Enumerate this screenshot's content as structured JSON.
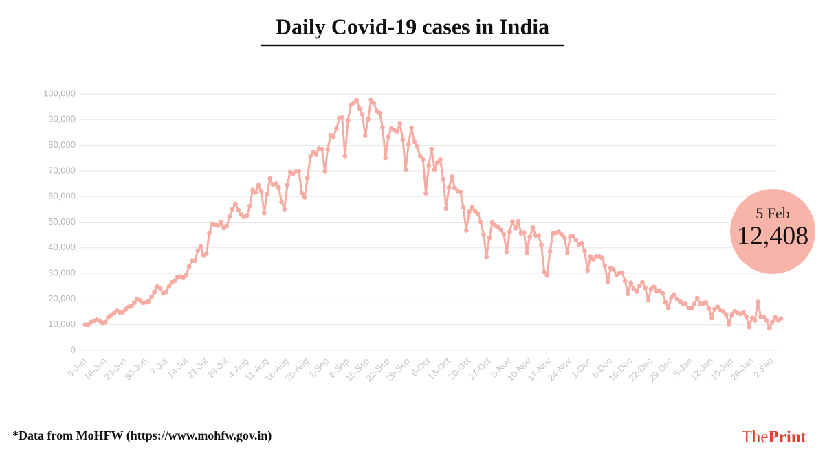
{
  "chart_data": {
    "type": "line",
    "title": "Daily Covid-19 cases in India",
    "source": "*Data from MoHFW (https://www.mohfw.gov.in)",
    "logo": [
      "The",
      "Print"
    ],
    "annotation": "5 Feb",
    "color": "#f6aca2",
    "grid": true,
    "ylim": [
      0,
      100000
    ],
    "yticks": [
      0,
      {
        "value": 10000,
        "label": "10,000"
      },
      {
        "value": 20000,
        "label": "20,000"
      },
      {
        "value": 30000,
        "label": "30,000"
      },
      {
        "value": 40000,
        "label": "40,000"
      },
      {
        "value": 50000,
        "label": "50,000"
      },
      {
        "value": 60000,
        "label": "60,000"
      },
      {
        "value": 70000,
        "label": "70,000"
      },
      {
        "value": 80000,
        "label": "80,000"
      },
      {
        "value": 90000,
        "label": "90,000"
      },
      {
        "value": 100000,
        "label": "100,000"
      }
    ],
    "categories": [
      "9-Jun",
      null,
      null,
      null,
      null,
      null,
      null,
      "16-Jun",
      null,
      null,
      null,
      null,
      null,
      null,
      "23-Jun",
      null,
      null,
      null,
      null,
      null,
      null,
      "30-Jun",
      null,
      null,
      null,
      null,
      null,
      null,
      "7-Jul",
      null,
      null,
      null,
      null,
      null,
      null,
      "14-Jul",
      null,
      null,
      null,
      null,
      null,
      null,
      "21-Jul",
      null,
      null,
      null,
      null,
      null,
      null,
      "28-Jul",
      null,
      null,
      null,
      null,
      null,
      null,
      "4-Aug",
      null,
      null,
      null,
      null,
      null,
      null,
      "11-Aug",
      null,
      null,
      null,
      null,
      null,
      null,
      "18-Aug",
      null,
      null,
      null,
      null,
      null,
      null,
      "25-Aug",
      null,
      null,
      null,
      null,
      null,
      null,
      "1-Sep",
      null,
      null,
      null,
      null,
      null,
      null,
      "8-Sep",
      null,
      null,
      null,
      null,
      null,
      null,
      "15-Sep",
      null,
      null,
      null,
      null,
      null,
      null,
      "22-Sep",
      null,
      null,
      null,
      null,
      null,
      null,
      "29-Sep",
      null,
      null,
      null,
      null,
      null,
      null,
      "6-Oct",
      null,
      null,
      null,
      null,
      null,
      null,
      "13-Oct",
      null,
      null,
      null,
      null,
      null,
      null,
      "20-Oct",
      null,
      null,
      null,
      null,
      null,
      null,
      "27-Oct",
      null,
      null,
      null,
      null,
      null,
      null,
      "3-Nov",
      null,
      null,
      null,
      null,
      null,
      null,
      "10-Nov",
      null,
      null,
      null,
      null,
      null,
      null,
      "17-Nov",
      null,
      null,
      null,
      null,
      null,
      null,
      "24-Nov",
      null,
      null,
      null,
      null,
      null,
      null,
      "1-Dec",
      null,
      null,
      null,
      null,
      null,
      null,
      "8-Dec",
      null,
      null,
      null,
      null,
      null,
      null,
      "15-Dec",
      null,
      null,
      null,
      null,
      null,
      null,
      "22-Dec",
      null,
      null,
      null,
      null,
      null,
      null,
      "29-Dec",
      null,
      null,
      null,
      null,
      null,
      null,
      "5-Jan",
      null,
      null,
      null,
      null,
      null,
      null,
      "12-Jan",
      null,
      null,
      null,
      null,
      null,
      null,
      "19-Jan",
      null,
      null,
      null,
      null,
      null,
      null,
      "26-Jan",
      null,
      null,
      null,
      null,
      null,
      null,
      "2-Feb",
      null,
      null,
      null
    ],
    "values": [
      9987,
      9985,
      10956,
      11458,
      11929,
      11502,
      10667,
      10974,
      12881,
      13586,
      14516,
      15413,
      14821,
      14933,
      15968,
      16922,
      17296,
      18552,
      19906,
      19459,
      18522,
      18653,
      19148,
      20903,
      22771,
      24850,
      24248,
      22252,
      22752,
      24879,
      26506,
      27114,
      28637,
      28701,
      28498,
      29429,
      32695,
      34956,
      34884,
      38902,
      40425,
      37148,
      37724,
      45720,
      49310,
      48916,
      48661,
      49931,
      47703,
      48513,
      52123,
      55079,
      57118,
      54735,
      52972,
      52050,
      52509,
      56282,
      62538,
      61537,
      64399,
      62064,
      53601,
      60963,
      66999,
      64553,
      65002,
      63490,
      57981,
      55079,
      64531,
      69652,
      68898,
      69878,
      69874,
      61408,
      59696,
      67151,
      75760,
      77266,
      76472,
      78761,
      78512,
      69921,
      78357,
      83883,
      83341,
      86432,
      90632,
      90802,
      75809,
      89706,
      95735,
      96551,
      97570,
      94372,
      92071,
      83809,
      90123,
      97894,
      96424,
      93337,
      92605,
      86961,
      75083,
      83347,
      86508,
      86052,
      85362,
      88600,
      82170,
      70589,
      80472,
      86821,
      81484,
      79476,
      75829,
      74442,
      61267,
      72049,
      78524,
      70496,
      73272,
      74383,
      66732,
      55342,
      63509,
      67708,
      63371,
      62212,
      61871,
      55722,
      46790,
      54044,
      55839,
      54366,
      53370,
      50129,
      45148,
      36470,
      43893,
      49881,
      48648,
      48268,
      46964,
      45321,
      38310,
      46254,
      50210,
      47638,
      50357,
      45674,
      45903,
      38074,
      44281,
      47905,
      44879,
      44878,
      41100,
      30548,
      29164,
      38617,
      45576,
      45882,
      46232,
      45209,
      44059,
      37975,
      44376,
      44489,
      43082,
      41322,
      41810,
      38772,
      31118,
      36604,
      35551,
      36595,
      36652,
      36011,
      32981,
      26567,
      32080,
      31521,
      29398,
      30006,
      30254,
      27071,
      22065,
      26382,
      24010,
      22889,
      25153,
      26624,
      24337,
      19556,
      23950,
      24712,
      23067,
      23068,
      22273,
      18732,
      16432,
      20549,
      21822,
      20035,
      19079,
      18177,
      18088,
      16505,
      16375,
      18088,
      20346,
      18139,
      18222,
      18645,
      16311,
      12584,
      15968,
      16946,
      15590,
      15158,
      13788,
      10064,
      13823,
      15223,
      14545,
      14256,
      14849,
      13203,
      9102,
      12689,
      11666,
      18855,
      13083,
      13053,
      11629,
      8635,
      11039,
      12899,
      11713,
      12408
    ],
    "value_labels": [
      null,
      null,
      null,
      null,
      null,
      null,
      null,
      null,
      null,
      null,
      null,
      null,
      null,
      null,
      null,
      null,
      null,
      null,
      null,
      null,
      null,
      null,
      null,
      null,
      null,
      null,
      null,
      null,
      null,
      null,
      null,
      null,
      null,
      null,
      null,
      null,
      null,
      null,
      null,
      null,
      null,
      null,
      null,
      null,
      null,
      null,
      null,
      null,
      null,
      null,
      null,
      null,
      null,
      null,
      null,
      null,
      null,
      null,
      null,
      null,
      null,
      null,
      null,
      null,
      null,
      null,
      null,
      null,
      null,
      null,
      null,
      null,
      null,
      null,
      null,
      null,
      null,
      null,
      null,
      null,
      null,
      null,
      null,
      null,
      null,
      null,
      null,
      null,
      null,
      null,
      null,
      null,
      null,
      null,
      null,
      null,
      null,
      null,
      null,
      null,
      null,
      null,
      null,
      null,
      null,
      null,
      null,
      null,
      null,
      null,
      null,
      null,
      null,
      null,
      null,
      null,
      null,
      null,
      null,
      null,
      null,
      null,
      null,
      null,
      null,
      null,
      null,
      null,
      null,
      null,
      null,
      null,
      null,
      null,
      null,
      null,
      null,
      null,
      null,
      null,
      null,
      null,
      null,
      null,
      null,
      null,
      null,
      null,
      null,
      null,
      null,
      null,
      null,
      null,
      null,
      null,
      null,
      null,
      null,
      null,
      null,
      null,
      null,
      null,
      null,
      null,
      null,
      null,
      null,
      null,
      null,
      null,
      null,
      null,
      null,
      null,
      null,
      null,
      null,
      null,
      null,
      null,
      null,
      null,
      null,
      null,
      null,
      null,
      null,
      null,
      null,
      null,
      null,
      null,
      null,
      null,
      null,
      null,
      null,
      null,
      null,
      null,
      null,
      null,
      null,
      null,
      null,
      null,
      null,
      null,
      null,
      null,
      null,
      null,
      null,
      null,
      null,
      null,
      null,
      null,
      null,
      null,
      null,
      null,
      null,
      null,
      null,
      null,
      null,
      null,
      null,
      null,
      null,
      null,
      null,
      null,
      null,
      null,
      null,
      null,
      null,
      "12,408"
    ]
  }
}
